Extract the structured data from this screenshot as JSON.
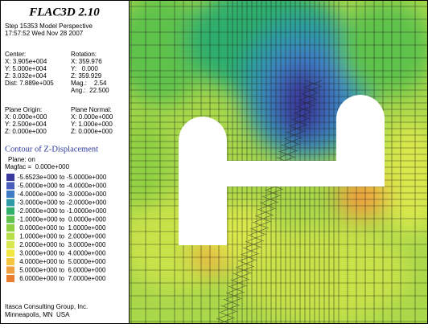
{
  "header": {
    "title": "FLAC3D 2.10",
    "step": "Step 15353 Model Perspective",
    "timestamp": "17:57:52 Wed Nov 28 2007"
  },
  "view": {
    "center_label": "Center:",
    "center": [
      "X: 3.905e+004",
      "Y: 5.000e+004",
      "Z: 3.032e+004"
    ],
    "dist": "Dist: 7.889e+005",
    "rotation_label": "Rotation:",
    "rotation": [
      "X: 359.976",
      "Y:   0.000",
      "Z: 359.929"
    ],
    "mag": "Mag.:    2.54",
    "ang": "Ang.:  22.500"
  },
  "plane": {
    "origin_label": "Plane Origin:",
    "origin": [
      "X: 0.000e+000",
      "Y: 2.500e+004",
      "Z: 0.000e+000"
    ],
    "normal_label": "Plane Normal:",
    "normal": [
      "X: 0.000e+000",
      "Y: 1.000e+000",
      "Z: 0.000e+000"
    ]
  },
  "contour": {
    "title": "Contour of Z-Displacement",
    "plane": "Plane: on",
    "magfac": "Magfac =  0.000e+000",
    "legend": [
      {
        "label": "-5.6523e+000 to -5.0000e+000",
        "color": "#3a3a9c"
      },
      {
        "label": "-5.0000e+000 to -4.0000e+000",
        "color": "#4a5cbc"
      },
      {
        "label": "-4.0000e+000 to -3.0000e+000",
        "color": "#3f7cc6"
      },
      {
        "label": "-3.0000e+000 to -2.0000e+000",
        "color": "#2e9aa6"
      },
      {
        "label": "-2.0000e+000 to -1.0000e+000",
        "color": "#2fae6c"
      },
      {
        "label": "-1.0000e+000 to  0.0000e+000",
        "color": "#5fc24c"
      },
      {
        "label": " 0.0000e+000 to  1.0000e+000",
        "color": "#8fd042"
      },
      {
        "label": " 1.0000e+000 to  2.0000e+000",
        "color": "#b8de4a"
      },
      {
        "label": " 2.0000e+000 to  3.0000e+000",
        "color": "#d9e84c"
      },
      {
        "label": " 3.0000e+000 to  4.0000e+000",
        "color": "#f2e640"
      },
      {
        "label": " 4.0000e+000 to  5.0000e+000",
        "color": "#f5c640"
      },
      {
        "label": " 5.0000e+000 to  6.0000e+000",
        "color": "#f0a03c"
      },
      {
        "label": " 6.0000e+000 to  7.0000e+000",
        "color": "#e87e2e"
      }
    ]
  },
  "footer": [
    "Itasca Consulting Group, Inc.",
    "Minneapolis, MN  USA"
  ]
}
